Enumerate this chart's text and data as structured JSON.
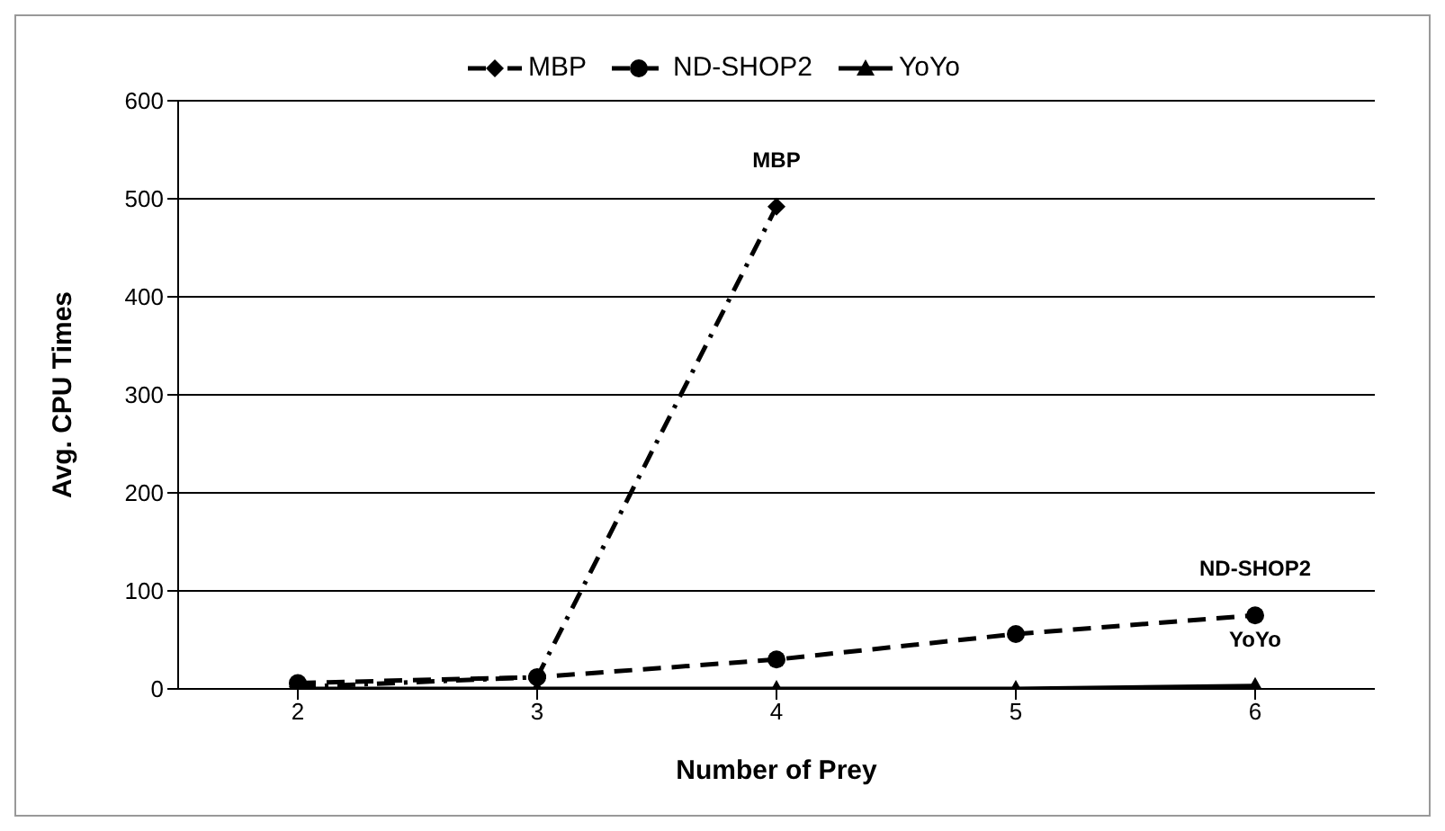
{
  "chart_data": {
    "type": "line",
    "xlabel": "Number of Prey",
    "ylabel": "Avg. CPU Times",
    "categories": [
      "2",
      "3",
      "4",
      "5",
      "6"
    ],
    "series": [
      {
        "name": "MBP",
        "color": "#000000",
        "values": [
          2,
          12,
          492,
          null,
          null
        ],
        "marker": "diamond",
        "line_style": "dashdot"
      },
      {
        "name": "ND-SHOP2",
        "color": "#000000",
        "values": [
          6,
          12,
          30,
          56,
          75
        ],
        "marker": "circle",
        "line_style": "dashed"
      },
      {
        "name": "YoYo",
        "color": "#000000",
        "values": [
          0,
          0,
          0,
          0,
          3
        ],
        "marker": "triangle",
        "line_style": "solid"
      }
    ],
    "ylim": [
      0,
      600
    ],
    "yticks": [
      0,
      100,
      200,
      300,
      400,
      500,
      600
    ],
    "grid": "y",
    "legend": "top",
    "annotations": [
      "MBP",
      "ND-SHOP2",
      "YoYo"
    ]
  }
}
